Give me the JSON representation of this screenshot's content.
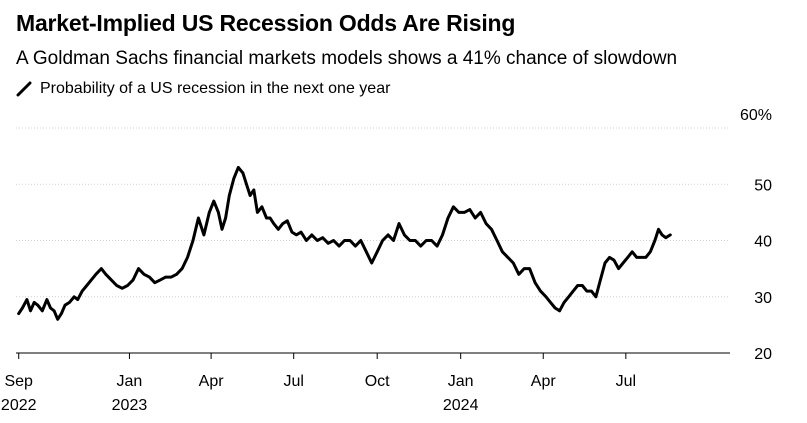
{
  "title": "Market-Implied US Recession Odds Are Rising",
  "subtitle": "A Goldman Sachs financial markets models shows a 41% chance of slowdown",
  "legend": {
    "label": "Probability of a US recession in the next one year",
    "icon": "diagonal-line-icon",
    "color": "#000000"
  },
  "chart_data": {
    "type": "line",
    "title": "Market-Implied US Recession Odds Are Rising",
    "ylabel": "",
    "ylim": [
      20,
      60
    ],
    "grid": true,
    "legend_placement": "top-left",
    "y_ticks": [
      {
        "value": 60,
        "label": "60%"
      },
      {
        "value": 50,
        "label": "50"
      },
      {
        "value": 40,
        "label": "40"
      },
      {
        "value": 30,
        "label": "30"
      },
      {
        "value": 20,
        "label": "20"
      }
    ],
    "x_ticks": [
      {
        "date": "2022-09-01",
        "label": "Sep",
        "sublabel": "2022"
      },
      {
        "date": "2023-01-01",
        "label": "Jan",
        "sublabel": "2023"
      },
      {
        "date": "2023-04-01",
        "label": "Apr",
        "sublabel": ""
      },
      {
        "date": "2023-07-01",
        "label": "Jul",
        "sublabel": ""
      },
      {
        "date": "2023-10-01",
        "label": "Oct",
        "sublabel": ""
      },
      {
        "date": "2024-01-01",
        "label": "Jan",
        "sublabel": "2024"
      },
      {
        "date": "2024-04-01",
        "label": "Apr",
        "sublabel": ""
      },
      {
        "date": "2024-07-01",
        "label": "Jul",
        "sublabel": ""
      }
    ],
    "xlim": [
      "2022-08-29",
      "2024-11-06"
    ],
    "series": [
      {
        "color": "#000000",
        "x": [
          "2022-09-01",
          "2022-09-05",
          "2022-09-10",
          "2022-09-14",
          "2022-09-18",
          "2022-09-22",
          "2022-09-27",
          "2022-10-02",
          "2022-10-06",
          "2022-10-10",
          "2022-10-14",
          "2022-10-18",
          "2022-10-22",
          "2022-10-27",
          "2022-11-01",
          "2022-11-05",
          "2022-11-10",
          "2022-11-15",
          "2022-11-20",
          "2022-11-25",
          "2022-12-01",
          "2022-12-06",
          "2022-12-12",
          "2022-12-18",
          "2022-12-24",
          "2022-12-30",
          "2023-01-05",
          "2023-01-11",
          "2023-01-17",
          "2023-01-23",
          "2023-01-29",
          "2023-02-04",
          "2023-02-10",
          "2023-02-16",
          "2023-02-22",
          "2023-02-28",
          "2023-03-06",
          "2023-03-12",
          "2023-03-18",
          "2023-03-24",
          "2023-03-30",
          "2023-04-04",
          "2023-04-09",
          "2023-04-13",
          "2023-04-17",
          "2023-04-21",
          "2023-04-26",
          "2023-05-01",
          "2023-05-06",
          "2023-05-10",
          "2023-05-14",
          "2023-05-18",
          "2023-05-22",
          "2023-05-27",
          "2023-06-01",
          "2023-06-05",
          "2023-06-09",
          "2023-06-14",
          "2023-06-19",
          "2023-06-24",
          "2023-06-29",
          "2023-07-04",
          "2023-07-09",
          "2023-07-15",
          "2023-07-21",
          "2023-07-27",
          "2023-08-02",
          "2023-08-08",
          "2023-08-14",
          "2023-08-20",
          "2023-08-26",
          "2023-09-01",
          "2023-09-07",
          "2023-09-13",
          "2023-09-19",
          "2023-09-25",
          "2023-10-01",
          "2023-10-07",
          "2023-10-13",
          "2023-10-19",
          "2023-10-25",
          "2023-10-31",
          "2023-11-06",
          "2023-11-12",
          "2023-11-18",
          "2023-11-24",
          "2023-11-30",
          "2023-12-06",
          "2023-12-12",
          "2023-12-18",
          "2023-12-24",
          "2023-12-30",
          "2024-01-05",
          "2024-01-11",
          "2024-01-17",
          "2024-01-23",
          "2024-01-29",
          "2024-02-04",
          "2024-02-10",
          "2024-02-16",
          "2024-02-22",
          "2024-02-28",
          "2024-03-05",
          "2024-03-11",
          "2024-03-17",
          "2024-03-23",
          "2024-03-29",
          "2024-04-04",
          "2024-04-09",
          "2024-04-14",
          "2024-04-19",
          "2024-04-24",
          "2024-04-29",
          "2024-05-04",
          "2024-05-09",
          "2024-05-14",
          "2024-05-19",
          "2024-05-24",
          "2024-05-29",
          "2024-06-03",
          "2024-06-08",
          "2024-06-13",
          "2024-06-18",
          "2024-06-23",
          "2024-06-28",
          "2024-07-03",
          "2024-07-08",
          "2024-07-13",
          "2024-07-18",
          "2024-07-23",
          "2024-07-28",
          "2024-08-02",
          "2024-08-06",
          "2024-08-10",
          "2024-08-14",
          "2024-08-19"
        ],
        "values": [
          27,
          28,
          29.5,
          27.5,
          29,
          28.5,
          27.5,
          29.5,
          28,
          27.5,
          26,
          27,
          28.5,
          29,
          30,
          29.5,
          31,
          32,
          33,
          34,
          35,
          34,
          33,
          32,
          31.5,
          32,
          33,
          35,
          34,
          33.5,
          32.5,
          33,
          33.5,
          33.5,
          34,
          35,
          37,
          40,
          44,
          41,
          45,
          47,
          45,
          42,
          44,
          48,
          51,
          53,
          52,
          50,
          48,
          49,
          45,
          46,
          44,
          44,
          43,
          42,
          43,
          43.5,
          41.5,
          41,
          41.5,
          40,
          41,
          40,
          40.5,
          39.5,
          40,
          39,
          40,
          40,
          39,
          40,
          38,
          36,
          38,
          40,
          41,
          40,
          43,
          41,
          40,
          40,
          39,
          40,
          40,
          39,
          41,
          44,
          46,
          45,
          45,
          45.5,
          44,
          45,
          43,
          42,
          40,
          38,
          37,
          36,
          34,
          35,
          35,
          32.5,
          31,
          30,
          29,
          28,
          27.5,
          29,
          30,
          31,
          32,
          32,
          31,
          31,
          30,
          33,
          36,
          37,
          36.5,
          35,
          36,
          37,
          38,
          37,
          37,
          37,
          38,
          40,
          42,
          41,
          40.5,
          41
        ]
      }
    ]
  }
}
